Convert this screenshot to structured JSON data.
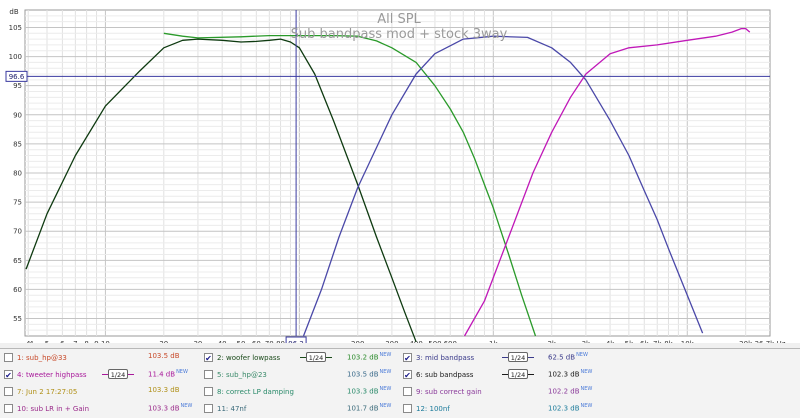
{
  "chart_data": {
    "type": "line",
    "title": "All SPL",
    "subtitle": "Sub bandpass mod + stock 3way",
    "ylabel": "dB",
    "x_scale": "log",
    "xlim": [
      3.85,
      26700
    ],
    "ylim": [
      52,
      108
    ],
    "grid": true,
    "x_ticks": [
      {
        "v": 4,
        "l": "4"
      },
      {
        "v": 4.15,
        "l": "4"
      },
      {
        "v": 5,
        "l": "5"
      },
      {
        "v": 6,
        "l": "6"
      },
      {
        "v": 7,
        "l": "7"
      },
      {
        "v": 8,
        "l": "8"
      },
      {
        "v": 9,
        "l": "9"
      },
      {
        "v": 10,
        "l": "10"
      },
      {
        "v": 20,
        "l": "20"
      },
      {
        "v": 30,
        "l": "30"
      },
      {
        "v": 40,
        "l": "40"
      },
      {
        "v": 50,
        "l": "50"
      },
      {
        "v": 60,
        "l": "60"
      },
      {
        "v": 70,
        "l": "70"
      },
      {
        "v": 80,
        "l": "80"
      },
      {
        "v": 200,
        "l": "200"
      },
      {
        "v": 300,
        "l": "300"
      },
      {
        "v": 400,
        "l": "400"
      },
      {
        "v": 500,
        "l": "500"
      },
      {
        "v": 600,
        "l": "600"
      },
      {
        "v": 1000,
        "l": "1k"
      },
      {
        "v": 2000,
        "l": "2k"
      },
      {
        "v": 3000,
        "l": "3k"
      },
      {
        "v": 4000,
        "l": "4k"
      },
      {
        "v": 5000,
        "l": "5k"
      },
      {
        "v": 6000,
        "l": "6k"
      },
      {
        "v": 7000,
        "l": "7k"
      },
      {
        "v": 8000,
        "l": "8k"
      },
      {
        "v": 10000,
        "l": "10k"
      },
      {
        "v": 20000,
        "l": "20k"
      },
      {
        "v": 26700,
        "l": "26.7k Hz"
      }
    ],
    "y_ticks": [
      {
        "v": 105,
        "l": "105"
      },
      {
        "v": 100,
        "l": "100"
      },
      {
        "v": 95,
        "l": "95"
      },
      {
        "v": 90,
        "l": "90"
      },
      {
        "v": 85,
        "l": "85"
      },
      {
        "v": 80,
        "l": "80"
      },
      {
        "v": 75,
        "l": "75"
      },
      {
        "v": 70,
        "l": "70"
      },
      {
        "v": 65,
        "l": "65"
      },
      {
        "v": 60,
        "l": "60"
      },
      {
        "v": 55,
        "l": "55"
      }
    ],
    "cursor": {
      "x": 96.2,
      "y": 96.6,
      "x_label": "96.2",
      "y_label": "96.6"
    },
    "series": [
      {
        "name": "woofer lowpass",
        "color": "#0e3a10",
        "points": [
          [
            3.9,
            63.5
          ],
          [
            5,
            73
          ],
          [
            7,
            83
          ],
          [
            10,
            91.5
          ],
          [
            15,
            97.5
          ],
          [
            20,
            101.5
          ],
          [
            25,
            102.8
          ],
          [
            30,
            103
          ],
          [
            40,
            102.8
          ],
          [
            50,
            102.5
          ],
          [
            60,
            102.6
          ],
          [
            70,
            102.8
          ],
          [
            80,
            103
          ],
          [
            90,
            102.5
          ],
          [
            100,
            101.5
          ],
          [
            120,
            97
          ],
          [
            150,
            89
          ],
          [
            200,
            78
          ],
          [
            250,
            69
          ],
          [
            300,
            62
          ],
          [
            350,
            56
          ],
          [
            400,
            51
          ]
        ]
      },
      {
        "name": "sub bandpass",
        "color": "#2a9a2a",
        "points": [
          [
            20,
            104
          ],
          [
            25,
            103.5
          ],
          [
            30,
            103.2
          ],
          [
            50,
            103.4
          ],
          [
            70,
            103.6
          ],
          [
            100,
            103.6
          ],
          [
            150,
            103.6
          ],
          [
            200,
            103.5
          ],
          [
            250,
            102.7
          ],
          [
            300,
            101.5
          ],
          [
            400,
            99
          ],
          [
            500,
            95
          ],
          [
            600,
            91
          ],
          [
            700,
            87
          ],
          [
            800,
            82.5
          ],
          [
            1000,
            74
          ],
          [
            1200,
            66
          ],
          [
            1400,
            59
          ],
          [
            1650,
            52
          ]
        ]
      },
      {
        "name": "mid bandpass",
        "color": "#4a48a8",
        "points": [
          [
            105,
            52
          ],
          [
            130,
            60
          ],
          [
            160,
            69
          ],
          [
            200,
            77.5
          ],
          [
            300,
            90
          ],
          [
            400,
            97
          ],
          [
            500,
            100.5
          ],
          [
            700,
            103
          ],
          [
            1000,
            103.5
          ],
          [
            1500,
            103.3
          ],
          [
            2000,
            101.5
          ],
          [
            2500,
            99
          ],
          [
            3000,
            96
          ],
          [
            4000,
            89
          ],
          [
            5000,
            83
          ],
          [
            6000,
            77
          ],
          [
            7000,
            72
          ],
          [
            8000,
            67
          ],
          [
            10000,
            59
          ],
          [
            12000,
            52.5
          ]
        ]
      },
      {
        "name": "tweeter highpass",
        "color": "#c018b8",
        "points": [
          [
            710,
            52
          ],
          [
            900,
            58
          ],
          [
            1200,
            69
          ],
          [
            1600,
            80
          ],
          [
            2000,
            87
          ],
          [
            2500,
            93
          ],
          [
            3000,
            97
          ],
          [
            4000,
            100.5
          ],
          [
            5000,
            101.5
          ],
          [
            7000,
            102
          ],
          [
            10000,
            102.8
          ],
          [
            14000,
            103.5
          ],
          [
            17000,
            104.2
          ],
          [
            19000,
            104.8
          ],
          [
            20000,
            104.8
          ],
          [
            21000,
            104.2
          ]
        ]
      }
    ]
  },
  "legend": [
    {
      "label": "1: sub_hp@33",
      "value": "103.5 dB",
      "checked": false,
      "color": "#c84a2a",
      "val_color": "#c84a2a",
      "smooth": "",
      "new_tag": ""
    },
    {
      "label": "2: woofer lowpass",
      "value": "103.2 dB",
      "checked": true,
      "color": "#1a4a1a",
      "val_color": "#2a8a2a",
      "smooth": "1/24",
      "new_tag": "NEW"
    },
    {
      "label": "3: mid bandpass",
      "value": "62.5 dB",
      "checked": true,
      "color": "#3a3a8a",
      "val_color": "#3a3a8a",
      "smooth": "1/24",
      "new_tag": "NEW"
    },
    {
      "label": "4: tweeter highpass",
      "value": "11.4 dB",
      "checked": true,
      "color": "#a8189a",
      "val_color": "#a8189a",
      "smooth": "1/24",
      "new_tag": "NEW"
    },
    {
      "label": "5: sub_hp@23",
      "value": "103.5 dB",
      "checked": false,
      "color": "#3a8a6a",
      "val_color": "#3a6a8a",
      "smooth": "",
      "new_tag": "NEW"
    },
    {
      "label": "6: sub bandpass",
      "value": "102.3 dB",
      "checked": true,
      "color": "#1a1a1a",
      "val_color": "#1a1a1a",
      "smooth": "1/24",
      "new_tag": "NEW"
    },
    {
      "label": "7: Jun 2 17:27:05",
      "value": "103.3 dB",
      "checked": false,
      "color": "#b09018",
      "val_color": "#b09018",
      "smooth": "",
      "new_tag": ""
    },
    {
      "label": "8: correct LP damping",
      "value": "103.3 dB",
      "checked": false,
      "color": "#2a8a6a",
      "val_color": "#2a8a6a",
      "smooth": "",
      "new_tag": "NEW"
    },
    {
      "label": "9: sub correct gain",
      "value": "102.2 dB",
      "checked": false,
      "color": "#8a3a9a",
      "val_color": "#8a3a9a",
      "smooth": "",
      "new_tag": "NEW"
    },
    {
      "label": "10: sub LR in + Gain",
      "value": "103.3 dB",
      "checked": false,
      "color": "#9a2a8a",
      "val_color": "#9a2a8a",
      "smooth": "",
      "new_tag": "NEW"
    },
    {
      "label": "11: 47nf",
      "value": "101.7 dB",
      "checked": false,
      "color": "#3a6a7a",
      "val_color": "#3a6a7a",
      "smooth": "",
      "new_tag": "NEW"
    },
    {
      "label": "12: 100nf",
      "value": "102.3 dB",
      "checked": false,
      "color": "#1a7a9a",
      "val_color": "#1a7a9a",
      "smooth": "",
      "new_tag": "NEW"
    }
  ]
}
